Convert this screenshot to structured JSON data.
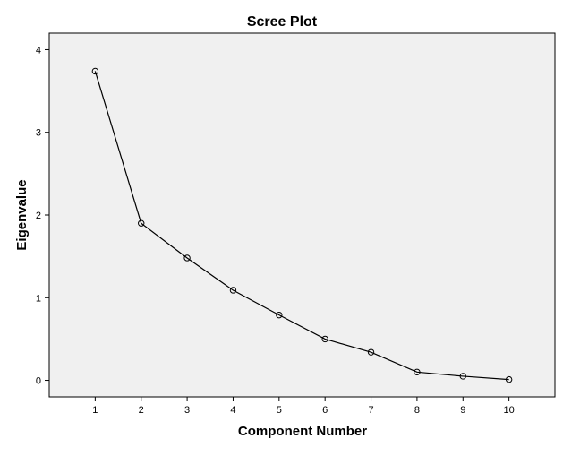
{
  "chart_data": {
    "type": "line",
    "title": "Scree Plot",
    "xlabel": "Component Number",
    "ylabel": "Eigenvalue",
    "x": [
      1,
      2,
      3,
      4,
      5,
      6,
      7,
      8,
      9,
      10
    ],
    "series": [
      {
        "values": [
          3.74,
          1.9,
          1.48,
          1.09,
          0.79,
          0.5,
          0.34,
          0.1,
          0.05,
          0.01
        ]
      }
    ],
    "xlim": [
      0,
      11
    ],
    "ylim": [
      -0.2,
      4.2
    ],
    "x_ticks": [
      1,
      2,
      3,
      4,
      5,
      6,
      7,
      8,
      9,
      10
    ],
    "y_ticks": [
      0,
      1,
      2,
      3,
      4
    ],
    "grid": false,
    "markers": "open-circle",
    "colors": {
      "plot_background": "#f0f0f0",
      "line": "#000000",
      "marker_stroke": "#000000"
    }
  }
}
